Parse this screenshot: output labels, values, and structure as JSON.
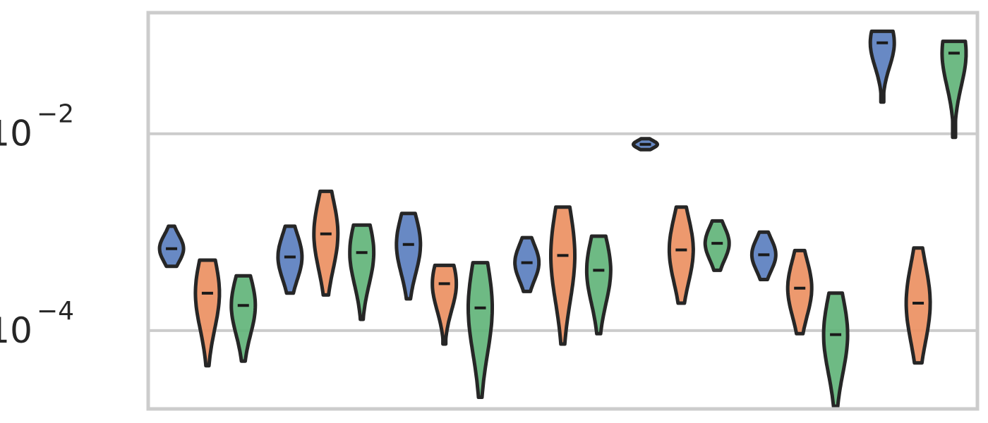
{
  "chart_data": {
    "type": "violin",
    "y_scale": "log",
    "ylim": [
      1.6e-05,
      0.17
    ],
    "y_ticks": [
      {
        "value": 0.01,
        "base": "10",
        "exponent": "−2"
      },
      {
        "value": 0.0001,
        "base": "10",
        "exponent": "−4"
      }
    ],
    "grid": true,
    "legend": "none",
    "series_colors": [
      "#5b7fbf",
      "#ec9062",
      "#62b47a"
    ],
    "n_groups": 7,
    "groups": [
      {
        "violins": [
          {
            "series": 0,
            "min": 0.00045,
            "max": 0.00115,
            "median": 0.00068
          },
          {
            "series": 1,
            "min": 4.4e-05,
            "max": 0.00052,
            "median": 0.00024
          },
          {
            "series": 2,
            "min": 4.9e-05,
            "max": 0.00036,
            "median": 0.00018
          }
        ]
      },
      {
        "violins": [
          {
            "series": 0,
            "min": 0.00024,
            "max": 0.00115,
            "median": 0.00056
          },
          {
            "series": 1,
            "min": 0.00023,
            "max": 0.0026,
            "median": 0.00096
          },
          {
            "series": 2,
            "min": 0.00013,
            "max": 0.00118,
            "median": 0.00062
          }
        ]
      },
      {
        "violins": [
          {
            "series": 0,
            "min": 0.00021,
            "max": 0.00155,
            "median": 0.00075
          },
          {
            "series": 1,
            "min": 7.3e-05,
            "max": 0.00046,
            "median": 0.0003
          },
          {
            "series": 2,
            "min": 2.1e-05,
            "max": 0.00049,
            "median": 0.00017
          }
        ]
      },
      {
        "violins": [
          {
            "series": 0,
            "min": 0.00025,
            "max": 0.00088,
            "median": 0.00049
          },
          {
            "series": 1,
            "min": 7.3e-05,
            "max": 0.0018,
            "median": 0.00058
          },
          {
            "series": 2,
            "min": 9.3e-05,
            "max": 0.00091,
            "median": 0.00041
          }
        ]
      },
      {
        "violins": [
          {
            "series": 0,
            "min": 0.0069,
            "max": 0.0089,
            "median": 0.0078
          },
          {
            "series": 1,
            "min": 0.00019,
            "max": 0.0018,
            "median": 0.00066
          },
          {
            "series": 2,
            "min": 0.00041,
            "max": 0.0013,
            "median": 0.00077
          }
        ]
      },
      {
        "violins": [
          {
            "series": 0,
            "min": 0.00033,
            "max": 0.001,
            "median": 0.00059
          },
          {
            "series": 1,
            "min": 9.3e-05,
            "max": 0.00065,
            "median": 0.00027
          },
          {
            "series": 2,
            "min": 1.7e-05,
            "max": 0.00024,
            "median": 9.1e-05
          }
        ]
      },
      {
        "violins": [
          {
            "series": 0,
            "min": 0.021,
            "max": 0.11,
            "median": 0.084
          },
          {
            "series": 1,
            "min": 4.7e-05,
            "max": 0.00069,
            "median": 0.00019
          },
          {
            "series": 2,
            "min": 0.0092,
            "max": 0.087,
            "median": 0.066
          }
        ]
      }
    ]
  }
}
